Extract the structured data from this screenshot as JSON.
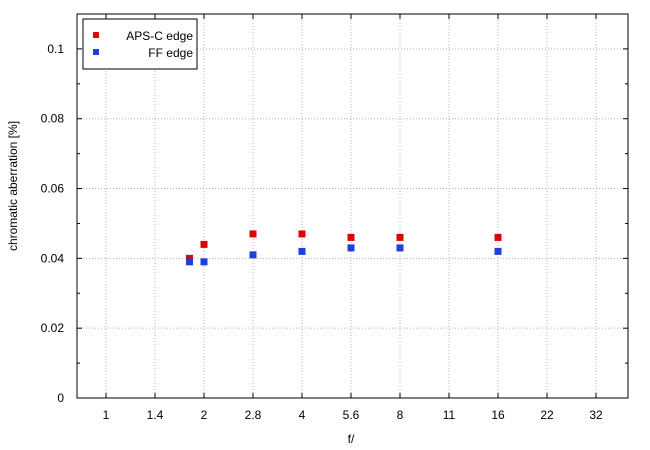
{
  "chart_data": {
    "type": "scatter",
    "xlabel": "f/",
    "ylabel": "chromatic  aberration [%]",
    "x_ticks": [
      "1",
      "1.4",
      "2",
      "2.8",
      "4",
      "5.6",
      "8",
      "11",
      "16",
      "22",
      "32"
    ],
    "y_ticks": [
      "0",
      "0.02",
      "0.04",
      "0.06",
      "0.08",
      "0.1"
    ],
    "ylim": [
      0,
      0.11
    ],
    "grid": true,
    "legend_position": "top-left",
    "series": [
      {
        "name": "APS-C edge",
        "color": "#e00000",
        "points": [
          {
            "x": 1.8,
            "y": 0.04
          },
          {
            "x": 2,
            "y": 0.044
          },
          {
            "x": 2.8,
            "y": 0.047
          },
          {
            "x": 4,
            "y": 0.047
          },
          {
            "x": 5.6,
            "y": 0.046
          },
          {
            "x": 8,
            "y": 0.046
          },
          {
            "x": 16,
            "y": 0.046
          }
        ]
      },
      {
        "name": "FF edge",
        "color": "#1f3fdc",
        "points": [
          {
            "x": 1.8,
            "y": 0.039
          },
          {
            "x": 2,
            "y": 0.039
          },
          {
            "x": 2.8,
            "y": 0.041
          },
          {
            "x": 4,
            "y": 0.042
          },
          {
            "x": 5.6,
            "y": 0.043
          },
          {
            "x": 8,
            "y": 0.043
          },
          {
            "x": 16,
            "y": 0.042
          }
        ]
      }
    ]
  }
}
